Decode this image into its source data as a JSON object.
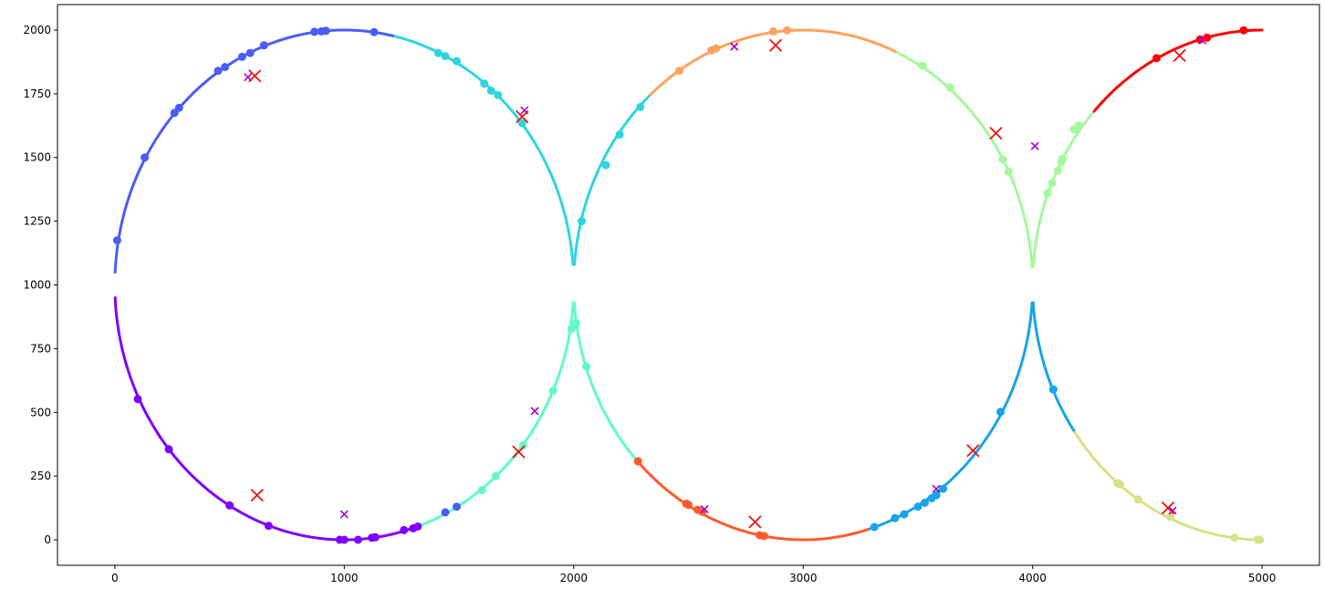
{
  "chart_data": {
    "type": "scatter",
    "title": "",
    "xlabel": "",
    "ylabel": "",
    "xlim": [
      -250,
      5250
    ],
    "ylim": [
      -100,
      2100
    ],
    "x_ticks": [
      0,
      1000,
      2000,
      3000,
      4000,
      5000
    ],
    "y_ticks": [
      0,
      250,
      500,
      750,
      1000,
      1250,
      1500,
      1750,
      2000
    ],
    "x_tick_labels": [
      "0",
      "1000",
      "2000",
      "3000",
      "4000",
      "5000"
    ],
    "y_tick_labels": [
      "0",
      "250",
      "500",
      "750",
      "1000",
      "1250",
      "1500",
      "1750",
      "2000"
    ],
    "grid": false,
    "legend": "none",
    "arcs": [
      {
        "cx": 1000,
        "cy": 1000,
        "from_deg": 180,
        "to_deg": 270,
        "color": "#7f00ff"
      },
      {
        "cx": 1000,
        "cy": 1000,
        "from_deg": 270,
        "to_deg": 300,
        "color": "#7f00ff"
      },
      {
        "cx": 1000,
        "cy": 1000,
        "from_deg": 90,
        "to_deg": 180,
        "color": "#4b5cf7"
      },
      {
        "cx": 1000,
        "cy": 1000,
        "from_deg": 70,
        "to_deg": 90,
        "color": "#4b5cf7"
      },
      {
        "cx": 1000,
        "cy": 1000,
        "from_deg": 0,
        "to_deg": 70,
        "color": "#2fd5de"
      },
      {
        "cx": 1000,
        "cy": 1000,
        "from_deg": 300,
        "to_deg": 360,
        "color": "#62fbc4"
      },
      {
        "cx": 3000,
        "cy": 1000,
        "from_deg": 120,
        "to_deg": 180,
        "color": "#2fd5de"
      },
      {
        "cx": 3000,
        "cy": 1000,
        "from_deg": 60,
        "to_deg": 120,
        "color": "#ffa25e"
      },
      {
        "cx": 3000,
        "cy": 1000,
        "from_deg": 0,
        "to_deg": 60,
        "color": "#a4f89e"
      },
      {
        "cx": 3000,
        "cy": 1000,
        "from_deg": 180,
        "to_deg": 220,
        "color": "#62fbc4"
      },
      {
        "cx": 3000,
        "cy": 1000,
        "from_deg": 220,
        "to_deg": 295,
        "color": "#ff5a2e"
      },
      {
        "cx": 3000,
        "cy": 1000,
        "from_deg": 295,
        "to_deg": 360,
        "color": "#18a4e8"
      },
      {
        "cx": 5000,
        "cy": 1000,
        "from_deg": 180,
        "to_deg": 235,
        "color": "#a4f89e"
      },
      {
        "cx": 5000,
        "cy": 1000,
        "from_deg": 235,
        "to_deg": 255,
        "color": "#ff0000"
      },
      {
        "cx": 5000,
        "cy": 1000,
        "from_deg": 255,
        "to_deg": 270,
        "color": "#ff0000"
      },
      {
        "cx": 5000,
        "cy": 1000,
        "from_deg": 90,
        "to_deg": 125,
        "color": "#18a4e8"
      },
      {
        "cx": 5000,
        "cy": 1000,
        "from_deg": 90,
        "to_deg": 90,
        "color": "#18a4e8"
      }
    ],
    "segments": [
      {
        "color": "#7f00ff",
        "points": [
          [
            0,
            950
          ],
          [
            10,
            800
          ],
          [
            100,
            560
          ],
          [
            240,
            355
          ],
          [
            500,
            135
          ],
          [
            670,
            55
          ],
          [
            1000,
            0
          ],
          [
            1200,
            20
          ],
          [
            1300,
            45
          ]
        ]
      },
      {
        "color": "#4b5cf7",
        "points": [
          [
            0,
            1050
          ],
          [
            10,
            1175
          ],
          [
            130,
            1500
          ],
          [
            280,
            1700
          ],
          [
            480,
            1855
          ],
          [
            650,
            1940
          ],
          [
            900,
            1995
          ],
          [
            1000,
            2000
          ],
          [
            1130,
            1992
          ],
          [
            1220,
            1975
          ]
        ]
      },
      {
        "color": "#2fd5de",
        "points": [
          [
            1220,
            1975
          ],
          [
            1420,
            1910
          ],
          [
            1490,
            1878
          ],
          [
            1610,
            1790
          ],
          [
            1670,
            1745
          ],
          [
            1775,
            1635
          ],
          [
            1880,
            1480
          ],
          [
            1960,
            1290
          ],
          [
            2000,
            1080
          ]
        ]
      },
      {
        "color": "#62fbc4",
        "points": [
          [
            1300,
            45
          ],
          [
            1490,
            130
          ],
          [
            1600,
            195
          ],
          [
            1660,
            250
          ],
          [
            1780,
            375
          ],
          [
            1910,
            585
          ],
          [
            1990,
            830
          ],
          [
            2000,
            930
          ]
        ]
      },
      {
        "color": "#62fbc4",
        "points": [
          [
            2000,
            930
          ],
          [
            2050,
            680
          ],
          [
            2150,
            470
          ],
          [
            2280,
            310
          ]
        ]
      },
      {
        "color": "#2fd5de",
        "points": [
          [
            2000,
            1080
          ],
          [
            2035,
            1250
          ],
          [
            2130,
            1470
          ],
          [
            2200,
            1590
          ],
          [
            2290,
            1700
          ],
          [
            2330,
            1745
          ]
        ]
      },
      {
        "color": "#ffa25e",
        "points": [
          [
            2330,
            1745
          ],
          [
            2460,
            1840
          ],
          [
            2600,
            1920
          ],
          [
            2870,
            1995
          ],
          [
            3000,
            2000
          ],
          [
            3200,
            1980
          ],
          [
            3410,
            1915
          ]
        ]
      },
      {
        "color": "#a4f89e",
        "points": [
          [
            3410,
            1915
          ],
          [
            3520,
            1860
          ],
          [
            3640,
            1775
          ],
          [
            3760,
            1650
          ],
          [
            3870,
            1490
          ],
          [
            3890,
            1445
          ],
          [
            3960,
            1250
          ],
          [
            4000,
            1070
          ]
        ]
      },
      {
        "color": "#ff5a2e",
        "points": [
          [
            2280,
            310
          ],
          [
            2390,
            215
          ],
          [
            2490,
            140
          ],
          [
            2560,
            110
          ],
          [
            2700,
            50
          ],
          [
            2820,
            15
          ],
          [
            3000,
            0
          ],
          [
            3200,
            20
          ],
          [
            3290,
            45
          ]
        ]
      },
      {
        "color": "#18a4e8",
        "points": [
          [
            3290,
            45
          ],
          [
            3310,
            50
          ],
          [
            3480,
            100
          ],
          [
            3540,
            135
          ],
          [
            3600,
            200
          ],
          [
            3700,
            290
          ],
          [
            3870,
            500
          ],
          [
            3950,
            700
          ],
          [
            4000,
            930
          ]
        ]
      },
      {
        "color": "#18a4e8",
        "points": [
          [
            4000,
            930
          ],
          [
            4030,
            730
          ],
          [
            4090,
            590
          ],
          [
            4190,
            425
          ]
        ]
      },
      {
        "color": "#d6e286",
        "points": [
          [
            4190,
            425
          ],
          [
            4300,
            290
          ],
          [
            4380,
            220
          ],
          [
            4460,
            160
          ],
          [
            4600,
            90
          ],
          [
            4760,
            35
          ],
          [
            4880,
            8
          ],
          [
            5000,
            0
          ]
        ]
      },
      {
        "color": "#a4f89e",
        "points": [
          [
            4000,
            1070
          ],
          [
            4070,
            1360
          ],
          [
            4090,
            1400
          ],
          [
            4110,
            1450
          ],
          [
            4130,
            1490
          ],
          [
            4180,
            1590
          ],
          [
            4220,
            1630
          ],
          [
            4270,
            1680
          ]
        ]
      },
      {
        "color": "#ff0000",
        "points": [
          [
            4270,
            1680
          ],
          [
            4420,
            1820
          ],
          [
            4560,
            1890
          ],
          [
            4740,
            1965
          ],
          [
            4920,
            1995
          ],
          [
            5000,
            2000
          ]
        ]
      }
    ],
    "points": [
      {
        "x": 10,
        "y": 1175,
        "color": "#4b5cf7"
      },
      {
        "x": 130,
        "y": 1500,
        "color": "#4b5cf7"
      },
      {
        "x": 260,
        "y": 1675,
        "color": "#4b5cf7"
      },
      {
        "x": 280,
        "y": 1695,
        "color": "#4b5cf7"
      },
      {
        "x": 450,
        "y": 1840,
        "color": "#4b5cf7"
      },
      {
        "x": 480,
        "y": 1855,
        "color": "#4b5cf7"
      },
      {
        "x": 555,
        "y": 1895,
        "color": "#4b5cf7"
      },
      {
        "x": 590,
        "y": 1910,
        "color": "#4b5cf7"
      },
      {
        "x": 650,
        "y": 1940,
        "color": "#4b5cf7"
      },
      {
        "x": 870,
        "y": 1993,
        "color": "#4b5cf7"
      },
      {
        "x": 900,
        "y": 1995,
        "color": "#4b5cf7"
      },
      {
        "x": 920,
        "y": 1997,
        "color": "#4b5cf7"
      },
      {
        "x": 1130,
        "y": 1992,
        "color": "#4b5cf7"
      },
      {
        "x": 1410,
        "y": 1910,
        "color": "#2fd5de"
      },
      {
        "x": 1440,
        "y": 1898,
        "color": "#2fd5de"
      },
      {
        "x": 1490,
        "y": 1878,
        "color": "#2fd5de"
      },
      {
        "x": 1610,
        "y": 1790,
        "color": "#2fd5de"
      },
      {
        "x": 1640,
        "y": 1762,
        "color": "#2fd5de"
      },
      {
        "x": 1670,
        "y": 1745,
        "color": "#2fd5de"
      },
      {
        "x": 1775,
        "y": 1635,
        "color": "#2fd5de"
      },
      {
        "x": 100,
        "y": 552,
        "color": "#7f00ff"
      },
      {
        "x": 235,
        "y": 355,
        "color": "#7f00ff"
      },
      {
        "x": 500,
        "y": 135,
        "color": "#7f00ff"
      },
      {
        "x": 670,
        "y": 55,
        "color": "#7f00ff"
      },
      {
        "x": 980,
        "y": 0,
        "color": "#7f00ff"
      },
      {
        "x": 1000,
        "y": 0,
        "color": "#7f00ff"
      },
      {
        "x": 1060,
        "y": 0,
        "color": "#7f00ff"
      },
      {
        "x": 1120,
        "y": 8,
        "color": "#7f00ff"
      },
      {
        "x": 1135,
        "y": 10,
        "color": "#7f00ff"
      },
      {
        "x": 1260,
        "y": 38,
        "color": "#7f00ff"
      },
      {
        "x": 1300,
        "y": 45,
        "color": "#7f00ff"
      },
      {
        "x": 1320,
        "y": 52,
        "color": "#7f00ff"
      },
      {
        "x": 1440,
        "y": 108,
        "color": "#4b5cf7"
      },
      {
        "x": 1490,
        "y": 130,
        "color": "#4b5cf7"
      },
      {
        "x": 1600,
        "y": 195,
        "color": "#62fbc4"
      },
      {
        "x": 1660,
        "y": 250,
        "color": "#62fbc4"
      },
      {
        "x": 1780,
        "y": 372,
        "color": "#62fbc4"
      },
      {
        "x": 1910,
        "y": 585,
        "color": "#62fbc4"
      },
      {
        "x": 1990,
        "y": 828,
        "color": "#62fbc4"
      },
      {
        "x": 2010,
        "y": 850,
        "color": "#62fbc4"
      },
      {
        "x": 2005,
        "y": 840,
        "color": "#62fbc4"
      },
      {
        "x": 2055,
        "y": 680,
        "color": "#62fbc4"
      },
      {
        "x": 2035,
        "y": 1250,
        "color": "#2fd5de"
      },
      {
        "x": 2140,
        "y": 1470,
        "color": "#2fd5de"
      },
      {
        "x": 2200,
        "y": 1590,
        "color": "#2fd5de"
      },
      {
        "x": 2290,
        "y": 1698,
        "color": "#2fd5de"
      },
      {
        "x": 2460,
        "y": 1840,
        "color": "#ffa25e"
      },
      {
        "x": 2600,
        "y": 1920,
        "color": "#ffa25e"
      },
      {
        "x": 2620,
        "y": 1928,
        "color": "#ffa25e"
      },
      {
        "x": 2870,
        "y": 1995,
        "color": "#ffa25e"
      },
      {
        "x": 2930,
        "y": 1999,
        "color": "#ffa25e"
      },
      {
        "x": 3520,
        "y": 1860,
        "color": "#a4f89e"
      },
      {
        "x": 3640,
        "y": 1775,
        "color": "#a4f89e"
      },
      {
        "x": 3870,
        "y": 1492,
        "color": "#a4f89e"
      },
      {
        "x": 3895,
        "y": 1445,
        "color": "#a4f89e"
      },
      {
        "x": 2280,
        "y": 308,
        "color": "#ff5a2e"
      },
      {
        "x": 2490,
        "y": 142,
        "color": "#ff5a2e"
      },
      {
        "x": 2500,
        "y": 137,
        "color": "#ff5a2e"
      },
      {
        "x": 2540,
        "y": 118,
        "color": "#ff5a2e"
      },
      {
        "x": 2560,
        "y": 110,
        "color": "#ff5a2e"
      },
      {
        "x": 2810,
        "y": 18,
        "color": "#ff5a2e"
      },
      {
        "x": 2830,
        "y": 15,
        "color": "#ff5a2e"
      },
      {
        "x": 3310,
        "y": 50,
        "color": "#18a4e8"
      },
      {
        "x": 3400,
        "y": 85,
        "color": "#18a4e8"
      },
      {
        "x": 3440,
        "y": 100,
        "color": "#18a4e8"
      },
      {
        "x": 3500,
        "y": 130,
        "color": "#18a4e8"
      },
      {
        "x": 3530,
        "y": 145,
        "color": "#18a4e8"
      },
      {
        "x": 3560,
        "y": 163,
        "color": "#18a4e8"
      },
      {
        "x": 3580,
        "y": 175,
        "color": "#18a4e8"
      },
      {
        "x": 3610,
        "y": 200,
        "color": "#18a4e8"
      },
      {
        "x": 3860,
        "y": 502,
        "color": "#18a4e8"
      },
      {
        "x": 4090,
        "y": 590,
        "color": "#18a4e8"
      },
      {
        "x": 4065,
        "y": 1360,
        "color": "#a4f89e"
      },
      {
        "x": 4085,
        "y": 1400,
        "color": "#a4f89e"
      },
      {
        "x": 4110,
        "y": 1448,
        "color": "#a4f89e"
      },
      {
        "x": 4125,
        "y": 1482,
        "color": "#a4f89e"
      },
      {
        "x": 4130,
        "y": 1495,
        "color": "#a4f89e"
      },
      {
        "x": 4180,
        "y": 1610,
        "color": "#a4f89e"
      },
      {
        "x": 4200,
        "y": 1625,
        "color": "#a4f89e"
      },
      {
        "x": 4370,
        "y": 222,
        "color": "#d6e286"
      },
      {
        "x": 4380,
        "y": 218,
        "color": "#d6e286"
      },
      {
        "x": 4460,
        "y": 158,
        "color": "#d6e286"
      },
      {
        "x": 4600,
        "y": 90,
        "color": "#d6e286"
      },
      {
        "x": 4880,
        "y": 8,
        "color": "#d6e286"
      },
      {
        "x": 4980,
        "y": 0,
        "color": "#d6e286"
      },
      {
        "x": 4990,
        "y": 0,
        "color": "#d6e286"
      },
      {
        "x": 4540,
        "y": 1890,
        "color": "#ff0000"
      },
      {
        "x": 4730,
        "y": 1963,
        "color": "#ff0000"
      },
      {
        "x": 4760,
        "y": 1970,
        "color": "#ff0000"
      },
      {
        "x": 4920,
        "y": 1999,
        "color": "#ff0000"
      }
    ],
    "small_crosses": [
      {
        "x": 580,
        "y": 1815
      },
      {
        "x": 1785,
        "y": 1685
      },
      {
        "x": 1830,
        "y": 505
      },
      {
        "x": 1000,
        "y": 100
      },
      {
        "x": 2700,
        "y": 1935
      },
      {
        "x": 2570,
        "y": 120
      },
      {
        "x": 3580,
        "y": 200
      },
      {
        "x": 4010,
        "y": 1545
      },
      {
        "x": 4610,
        "y": 115
      },
      {
        "x": 4740,
        "y": 1960
      }
    ],
    "large_crosses": [
      {
        "x": 610,
        "y": 1820
      },
      {
        "x": 1775,
        "y": 1660
      },
      {
        "x": 1760,
        "y": 345
      },
      {
        "x": 620,
        "y": 175
      },
      {
        "x": 2880,
        "y": 1940
      },
      {
        "x": 2790,
        "y": 70
      },
      {
        "x": 3840,
        "y": 1595
      },
      {
        "x": 3740,
        "y": 350
      },
      {
        "x": 4590,
        "y": 125
      },
      {
        "x": 4640,
        "y": 1900
      }
    ],
    "small_cross_color": "#aa00cc",
    "large_cross_color": "#ee1111"
  }
}
